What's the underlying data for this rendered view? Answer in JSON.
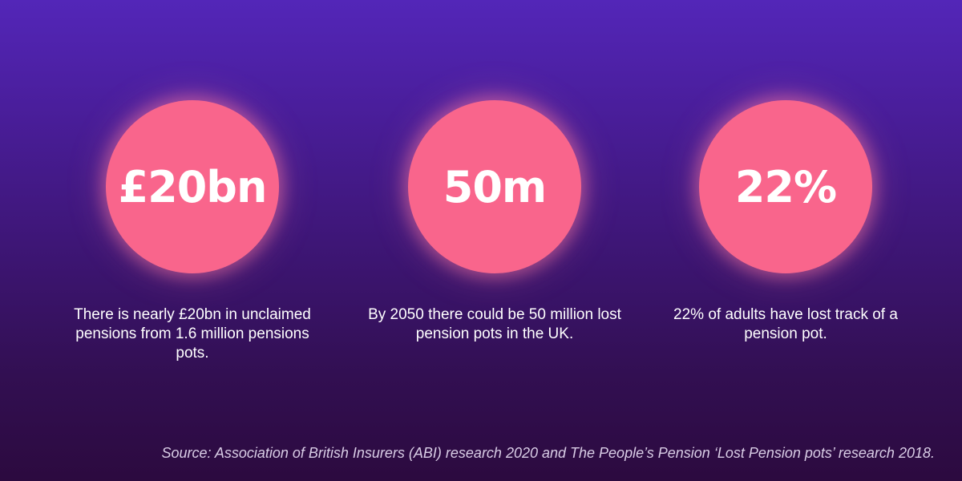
{
  "stats": [
    {
      "figure": "£20bn",
      "caption": "There is nearly £20bn in unclaimed pensions from 1.6 million pensions pots."
    },
    {
      "figure": "50m",
      "caption": "By 2050 there could be 50 million lost pension pots in the UK."
    },
    {
      "figure": "22%",
      "caption": "22% of adults have lost track of a pension pot."
    }
  ],
  "source": "Source: Association of British Insurers (ABI) research 2020 and The People’s Pension ‘Lost Pension pots’ research 2018.",
  "colors": {
    "circle": "#f9658c",
    "background_top": "#5326b8",
    "background_bottom": "#2c0a3f"
  }
}
